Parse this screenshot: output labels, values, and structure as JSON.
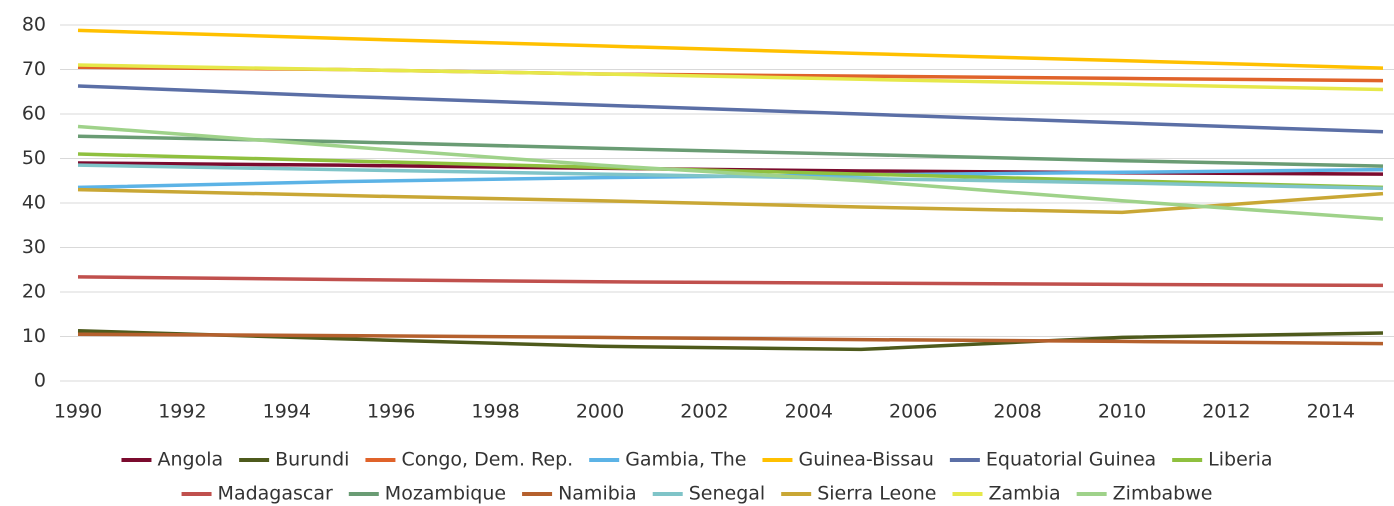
{
  "chart_data": {
    "type": "line",
    "x": [
      1990,
      1995,
      2000,
      2005,
      2010,
      2015
    ],
    "xlim": [
      1990,
      2015
    ],
    "xticks": [
      1990,
      1992,
      1994,
      1996,
      1998,
      2000,
      2002,
      2004,
      2006,
      2008,
      2010,
      2012,
      2014
    ],
    "ylim": [
      0,
      80
    ],
    "yticks": [
      0,
      10,
      20,
      30,
      40,
      50,
      60,
      70,
      80
    ],
    "grid": true,
    "legend": "bottom",
    "series": [
      {
        "name": "Angola",
        "color": "#7b0b2e",
        "values": [
          49,
          48.5,
          47.8,
          47.2,
          46.8,
          46.5
        ]
      },
      {
        "name": "Burundi",
        "color": "#4e5a1c",
        "values": [
          11.3,
          9.5,
          7.8,
          7.1,
          9.8,
          10.8
        ]
      },
      {
        "name": "Congo, Dem. Rep.",
        "color": "#e0632a",
        "values": [
          70.5,
          70,
          69,
          68.5,
          68,
          67.5
        ]
      },
      {
        "name": "Gambia, The",
        "color": "#5cb3e6",
        "values": [
          43.5,
          44.8,
          45.7,
          46.3,
          46.9,
          47.5
        ]
      },
      {
        "name": "Guinea-Bissau",
        "color": "#ffc000",
        "values": [
          78.8,
          77,
          75.3,
          73.6,
          72,
          70.3
        ]
      },
      {
        "name": "Equatorial Guinea",
        "color": "#5b6fa6",
        "values": [
          66.3,
          64,
          62,
          60,
          58,
          56
        ]
      },
      {
        "name": "Liberia",
        "color": "#8fc03f",
        "values": [
          51,
          49.5,
          48,
          46.5,
          45,
          43.5
        ]
      },
      {
        "name": "Madagascar",
        "color": "#c0504d",
        "values": [
          23.4,
          22.8,
          22.3,
          22,
          21.7,
          21.5
        ]
      },
      {
        "name": "Mozambique",
        "color": "#6a9c74",
        "values": [
          55,
          53.8,
          52.3,
          50.9,
          49.5,
          48.3
        ]
      },
      {
        "name": "Namibia",
        "color": "#b5602d",
        "values": [
          10.5,
          10.2,
          9.8,
          9.3,
          8.9,
          8.4
        ]
      },
      {
        "name": "Senegal",
        "color": "#7fc4c8",
        "values": [
          48.5,
          47.5,
          46.5,
          45.5,
          44.5,
          43.3
        ]
      },
      {
        "name": "Sierra Leone",
        "color": "#c9a735",
        "values": [
          43,
          41.7,
          40.5,
          39.1,
          37.9,
          42.1
        ]
      },
      {
        "name": "Zambia",
        "color": "#e6e84a",
        "values": [
          71,
          70,
          69,
          67.8,
          66.7,
          65.5
        ]
      },
      {
        "name": "Zimbabwe",
        "color": "#9fd28a",
        "values": [
          57.2,
          52.8,
          48.5,
          45,
          40.5,
          36.4
        ]
      }
    ]
  }
}
